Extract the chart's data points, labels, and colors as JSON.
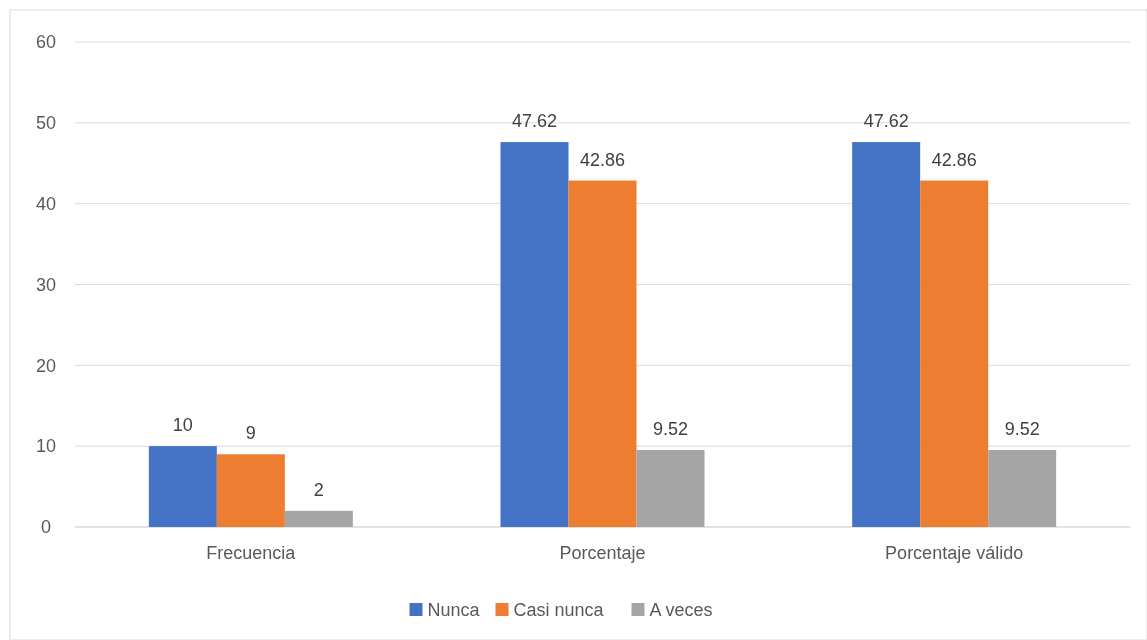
{
  "chart_data": {
    "type": "bar",
    "categories": [
      "Frecuencia",
      "Porcentaje",
      "Porcentaje válido"
    ],
    "series": [
      {
        "name": "Nunca",
        "color": "#4472c4",
        "values": [
          10,
          47.62,
          47.62
        ]
      },
      {
        "name": "Casi nunca",
        "color": "#ed7d31",
        "values": [
          9,
          42.86,
          42.86
        ]
      },
      {
        "name": "A veces",
        "color": "#a5a5a5",
        "values": [
          2,
          9.52,
          9.52
        ]
      }
    ],
    "ylim": [
      0,
      60
    ],
    "yticks": [
      0,
      10,
      20,
      30,
      40,
      50,
      60
    ],
    "grid": "y",
    "legend": "bottom",
    "data_labels": true
  }
}
